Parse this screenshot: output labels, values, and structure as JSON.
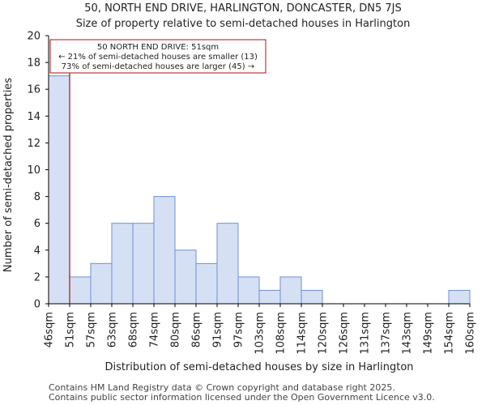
{
  "header": {
    "title": "50, NORTH END DRIVE, HARLINGTON, DONCASTER, DN5 7JS",
    "subtitle": "Size of property relative to semi-detached houses in Harlington"
  },
  "chart_data": {
    "type": "bar",
    "title": "50, NORTH END DRIVE, HARLINGTON, DONCASTER, DN5 7JS",
    "subtitle": "Size of property relative to semi-detached houses in Harlington",
    "xlabel": "Distribution of semi-detached houses by size in Harlington",
    "ylabel": "Number of semi-detached properties",
    "ylim": [
      0,
      20
    ],
    "yticks": [
      0,
      2,
      4,
      6,
      8,
      10,
      12,
      14,
      16,
      18,
      20
    ],
    "bin_edges": [
      "46sqm",
      "51sqm",
      "57sqm",
      "63sqm",
      "68sqm",
      "74sqm",
      "80sqm",
      "86sqm",
      "91sqm",
      "97sqm",
      "103sqm",
      "108sqm",
      "114sqm",
      "120sqm",
      "126sqm",
      "131sqm",
      "137sqm",
      "143sqm",
      "149sqm",
      "154sqm",
      "160sqm"
    ],
    "values": [
      17,
      2,
      3,
      6,
      6,
      8,
      4,
      3,
      6,
      2,
      1,
      2,
      1,
      0,
      0,
      0,
      0,
      0,
      0,
      1
    ],
    "bar_color": "#d6e0f5",
    "bar_edge_color": "#6e8fcf",
    "marker": {
      "value_index": 1,
      "color": "#aa1111",
      "lines": [
        "50 NORTH END DRIVE: 51sqm",
        "← 21% of semi-detached houses are smaller (13)",
        "73% of semi-detached houses are larger (45) →"
      ]
    },
    "grid": false
  },
  "footer": {
    "line1": "Contains HM Land Registry data © Crown copyright and database right 2025.",
    "line2": "Contains public sector information licensed under the Open Government Licence v3.0."
  }
}
